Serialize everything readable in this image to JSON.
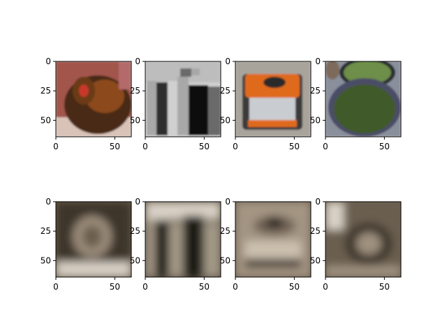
{
  "chart_data": {
    "type": "image-grid",
    "rows": 2,
    "cols": 4,
    "xlim": [
      0,
      64
    ],
    "ylim": [
      64,
      0
    ],
    "xticks": [
      0,
      50
    ],
    "yticks": [
      0,
      25,
      50
    ],
    "panels": [
      {
        "row": 0,
        "content": "hen",
        "colors": [
          "#4a2a14",
          "#8b4a1c",
          "#c8382a",
          "#b46b6b",
          "#d9c2b8"
        ]
      },
      {
        "row": 0,
        "content": "filing-cabinets",
        "colors": [
          "#2e2e2e",
          "#6a6a6a",
          "#a8a8a8",
          "#d0d0d0",
          "#111111"
        ]
      },
      {
        "row": 0,
        "content": "typewriter",
        "colors": [
          "#e06b1a",
          "#c9ccd0",
          "#7a7a7a",
          "#3a3a3a",
          "#a9a49b"
        ]
      },
      {
        "row": 0,
        "content": "potted-seedlings",
        "colors": [
          "#3f5a2a",
          "#6d8f4a",
          "#4b4e66",
          "#8a8f9c",
          "#2b2b30"
        ]
      },
      {
        "row": 1,
        "content": "blurred-reconstruction",
        "colors": [
          "#3e352b",
          "#6b5d4c",
          "#9b8c7a",
          "#d6cfc4",
          "#241f19"
        ]
      },
      {
        "row": 1,
        "content": "blurred-reconstruction",
        "colors": [
          "#2f2a24",
          "#5d5246",
          "#a39886",
          "#d8d0c4",
          "#1e1a16"
        ]
      },
      {
        "row": 1,
        "content": "blurred-reconstruction",
        "colors": [
          "#3a3028",
          "#6e6152",
          "#a49583",
          "#cbbfae",
          "#231d18"
        ]
      },
      {
        "row": 1,
        "content": "blurred-reconstruction",
        "colors": [
          "#3c342c",
          "#6a5e50",
          "#9f917f",
          "#d9d2c6",
          "#26201b"
        ]
      }
    ]
  }
}
